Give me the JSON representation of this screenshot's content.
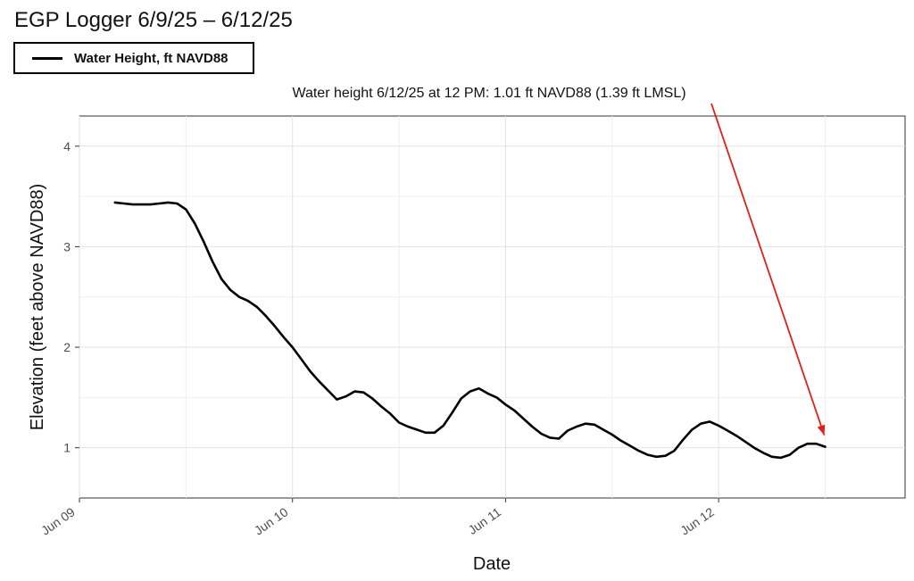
{
  "chart_data": {
    "type": "line",
    "title": "EGP Logger 6/9/25 – 6/12/25",
    "xlabel": "Date",
    "ylabel": "Elevation (feet above NAVD88)",
    "x_ticks": [
      "Jun 09",
      "Jun 10",
      "Jun 11",
      "Jun 12"
    ],
    "y_ticks": [
      1,
      2,
      3,
      4
    ],
    "xlim": [
      "2025-06-09 00:00",
      "2025-06-12 21:00"
    ],
    "ylim": [
      0.5,
      4.3
    ],
    "grid": true,
    "legend_position": "top-left",
    "annotation": {
      "text": "Water height 6/12/25 at 12 PM: 1.01 ft NAVD88 (1.39 ft LMSL)",
      "x": "2025-06-12 12:00",
      "y": 1.01,
      "color": "#e0201b"
    },
    "series": [
      {
        "name": "Water Height, ft NAVD88",
        "color": "#000000",
        "x": [
          "2025-06-09 04:00",
          "2025-06-09 05:00",
          "2025-06-09 06:00",
          "2025-06-09 07:00",
          "2025-06-09 08:00",
          "2025-06-09 09:00",
          "2025-06-09 10:00",
          "2025-06-09 11:00",
          "2025-06-09 12:00",
          "2025-06-09 13:00",
          "2025-06-09 14:00",
          "2025-06-09 15:00",
          "2025-06-09 16:00",
          "2025-06-09 17:00",
          "2025-06-09 18:00",
          "2025-06-09 19:00",
          "2025-06-09 20:00",
          "2025-06-09 21:00",
          "2025-06-09 22:00",
          "2025-06-09 23:00",
          "2025-06-10 00:00",
          "2025-06-10 01:00",
          "2025-06-10 02:00",
          "2025-06-10 03:00",
          "2025-06-10 04:00",
          "2025-06-10 05:00",
          "2025-06-10 06:00",
          "2025-06-10 07:00",
          "2025-06-10 08:00",
          "2025-06-10 09:00",
          "2025-06-10 10:00",
          "2025-06-10 11:00",
          "2025-06-10 12:00",
          "2025-06-10 13:00",
          "2025-06-10 14:00",
          "2025-06-10 15:00",
          "2025-06-10 16:00",
          "2025-06-10 17:00",
          "2025-06-10 18:00",
          "2025-06-10 19:00",
          "2025-06-10 20:00",
          "2025-06-10 21:00",
          "2025-06-10 22:00",
          "2025-06-10 23:00",
          "2025-06-11 00:00",
          "2025-06-11 01:00",
          "2025-06-11 02:00",
          "2025-06-11 03:00",
          "2025-06-11 04:00",
          "2025-06-11 05:00",
          "2025-06-11 06:00",
          "2025-06-11 07:00",
          "2025-06-11 08:00",
          "2025-06-11 09:00",
          "2025-06-11 10:00",
          "2025-06-11 11:00",
          "2025-06-11 12:00",
          "2025-06-11 13:00",
          "2025-06-11 14:00",
          "2025-06-11 15:00",
          "2025-06-11 16:00",
          "2025-06-11 17:00",
          "2025-06-11 18:00",
          "2025-06-11 19:00",
          "2025-06-11 20:00",
          "2025-06-11 21:00",
          "2025-06-11 22:00",
          "2025-06-11 23:00",
          "2025-06-12 00:00",
          "2025-06-12 01:00",
          "2025-06-12 02:00",
          "2025-06-12 03:00",
          "2025-06-12 04:00",
          "2025-06-12 05:00",
          "2025-06-12 06:00",
          "2025-06-12 07:00",
          "2025-06-12 08:00",
          "2025-06-12 09:00",
          "2025-06-12 10:00",
          "2025-06-12 11:00",
          "2025-06-12 12:00"
        ],
        "values": [
          3.44,
          3.43,
          3.42,
          3.42,
          3.42,
          3.43,
          3.44,
          3.43,
          3.37,
          3.23,
          3.05,
          2.85,
          2.68,
          2.57,
          2.5,
          2.46,
          2.4,
          2.31,
          2.21,
          2.1,
          2.0,
          1.88,
          1.76,
          1.66,
          1.57,
          1.48,
          1.51,
          1.56,
          1.55,
          1.49,
          1.41,
          1.34,
          1.25,
          1.21,
          1.18,
          1.15,
          1.15,
          1.22,
          1.35,
          1.49,
          1.56,
          1.59,
          1.54,
          1.5,
          1.43,
          1.37,
          1.29,
          1.21,
          1.14,
          1.1,
          1.09,
          1.17,
          1.21,
          1.24,
          1.23,
          1.18,
          1.13,
          1.07,
          1.02,
          0.97,
          0.93,
          0.91,
          0.92,
          0.97,
          1.08,
          1.18,
          1.24,
          1.26,
          1.22,
          1.17,
          1.12,
          1.06,
          1.0,
          0.95,
          0.91,
          0.9,
          0.93,
          1.0,
          1.04,
          1.04,
          1.01
        ]
      }
    ]
  }
}
